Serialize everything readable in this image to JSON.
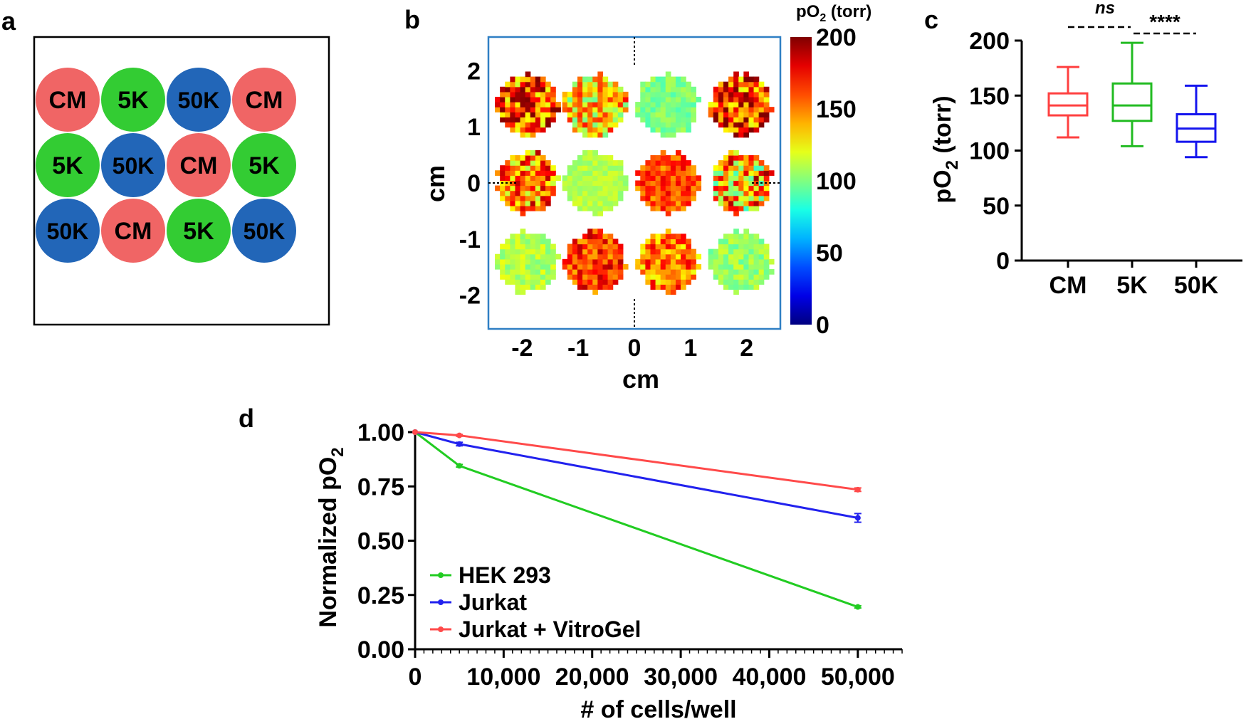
{
  "colors": {
    "cm": "#f06565",
    "k5": "#33cc33",
    "k50": "#2266b8",
    "plate_border": "#000000",
    "map_frame": "#2f7fc4",
    "box_cm": "#ff4040",
    "box_5k": "#22bb22",
    "box_50k": "#1515ee",
    "line_hek": "#22cc22",
    "line_jurkat": "#2222ee",
    "line_vitrogel": "#ff4a4a"
  },
  "panels": {
    "a": {
      "letter": "a"
    },
    "b": {
      "letter": "b"
    },
    "c": {
      "letter": "c"
    },
    "d": {
      "letter": "d"
    }
  },
  "chart_data": [
    {
      "panel": "a",
      "type": "table",
      "title": "",
      "rows": [
        [
          {
            "label": "CM",
            "group": "cm"
          },
          {
            "label": "5K",
            "group": "k5"
          },
          {
            "label": "50K",
            "group": "k50"
          },
          {
            "label": "CM",
            "group": "cm"
          }
        ],
        [
          {
            "label": "5K",
            "group": "k5"
          },
          {
            "label": "50K",
            "group": "k50"
          },
          {
            "label": "CM",
            "group": "cm"
          },
          {
            "label": "5K",
            "group": "k5"
          }
        ],
        [
          {
            "label": "50K",
            "group": "k50"
          },
          {
            "label": "CM",
            "group": "cm"
          },
          {
            "label": "5K",
            "group": "k5"
          },
          {
            "label": "50K",
            "group": "k50"
          }
        ]
      ]
    },
    {
      "panel": "b",
      "type": "heatmap",
      "title": "",
      "xlabel": "cm",
      "ylabel": "cm",
      "xlim": [
        -2.6,
        2.6
      ],
      "ylim": [
        -2.6,
        2.6
      ],
      "x_ticks": [
        "-2",
        "-1",
        "0",
        "1",
        "2"
      ],
      "x_tick_values": [
        -2,
        -1,
        0,
        1,
        2
      ],
      "y_ticks": [
        "2",
        "1",
        "0",
        "-1",
        "-2"
      ],
      "y_tick_values": [
        2,
        1,
        0,
        -1,
        -2
      ],
      "colorbar": {
        "label": "pO",
        "label_sub": "2",
        "label_unit": " (torr)",
        "range": [
          0,
          200
        ],
        "ticks": [
          "200",
          "150",
          "100",
          "50",
          "0"
        ],
        "tick_values": [
          200,
          150,
          100,
          50,
          0
        ]
      },
      "wells": [
        {
          "x": -1.9,
          "y": 1.4,
          "base": 160,
          "spread": 45
        },
        {
          "x": -0.7,
          "y": 1.4,
          "base": 135,
          "spread": 40
        },
        {
          "x": 0.6,
          "y": 1.4,
          "base": 100,
          "spread": 10
        },
        {
          "x": 1.9,
          "y": 1.4,
          "base": 165,
          "spread": 45
        },
        {
          "x": -1.9,
          "y": 0.0,
          "base": 150,
          "spread": 40
        },
        {
          "x": -0.7,
          "y": 0.0,
          "base": 110,
          "spread": 8
        },
        {
          "x": 0.6,
          "y": 0.0,
          "base": 160,
          "spread": 20
        },
        {
          "x": 1.9,
          "y": 0.0,
          "base": 140,
          "spread": 55
        },
        {
          "x": -1.9,
          "y": -1.4,
          "base": 110,
          "spread": 12
        },
        {
          "x": -0.7,
          "y": -1.4,
          "base": 165,
          "spread": 25
        },
        {
          "x": 0.6,
          "y": -1.4,
          "base": 150,
          "spread": 30
        },
        {
          "x": 1.9,
          "y": -1.4,
          "base": 105,
          "spread": 12
        }
      ]
    },
    {
      "panel": "c",
      "type": "box",
      "title": "",
      "xlabel": "",
      "ylabel": "pO",
      "ylabel_sub": "2",
      "ylabel_unit": " (torr)",
      "ylim": [
        0,
        200
      ],
      "y_ticks": [
        "200",
        "150",
        "100",
        "50",
        "0"
      ],
      "y_tick_values": [
        200,
        150,
        100,
        50,
        0
      ],
      "categories": [
        "CM",
        "5K",
        "50K"
      ],
      "boxes": [
        {
          "name": "CM",
          "min": 112,
          "q1": 132,
          "median": 141,
          "q3": 152,
          "max": 176
        },
        {
          "name": "5K",
          "min": 104,
          "q1": 127,
          "median": 141,
          "q3": 161,
          "max": 198
        },
        {
          "name": "50K",
          "min": 94,
          "q1": 108,
          "median": 120,
          "q3": 133,
          "max": 159
        }
      ],
      "annotations": [
        {
          "text": "ns",
          "from": "CM",
          "to": "5K"
        },
        {
          "text": "****",
          "from": "5K",
          "to": "50K"
        }
      ]
    },
    {
      "panel": "d",
      "type": "line",
      "title": "",
      "xlabel": "# of cells/well",
      "ylabel": "Normalized pO",
      "ylabel_sub": "2",
      "xlim": [
        0,
        55000
      ],
      "ylim": [
        0,
        1.0
      ],
      "x_ticks": [
        "0",
        "10,000",
        "20,000",
        "30,000",
        "40,000",
        "50,000"
      ],
      "x_tick_values": [
        0,
        10000,
        20000,
        30000,
        40000,
        50000
      ],
      "y_ticks": [
        "1.00",
        "0.75",
        "0.50",
        "0.25",
        "0.00"
      ],
      "y_tick_values": [
        1.0,
        0.75,
        0.5,
        0.25,
        0.0
      ],
      "legend_position": "bottom-left",
      "series": [
        {
          "name": "HEK 293",
          "x": [
            0,
            5000,
            50000
          ],
          "values": [
            1.0,
            0.845,
            0.195
          ],
          "err": [
            0,
            0.006,
            0.005
          ],
          "color_key": "line_hek"
        },
        {
          "name": "Jurkat",
          "x": [
            0,
            5000,
            50000
          ],
          "values": [
            1.0,
            0.945,
            0.605
          ],
          "err": [
            0,
            0.008,
            0.02
          ],
          "color_key": "line_jurkat"
        },
        {
          "name": "Jurkat + VitroGel",
          "x": [
            0,
            5000,
            50000
          ],
          "values": [
            1.0,
            0.985,
            0.735
          ],
          "err": [
            0,
            0.004,
            0.008
          ],
          "color_key": "line_vitrogel"
        }
      ]
    }
  ]
}
